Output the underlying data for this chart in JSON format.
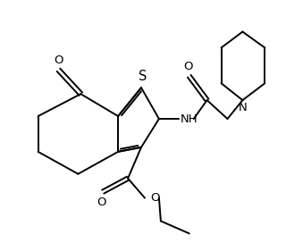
{
  "bg_color": "#ffffff",
  "line_color": "#000000",
  "line_width": 1.4,
  "font_size": 9.5,
  "xlim": [
    0,
    10
  ],
  "ylim": [
    0,
    8.5
  ]
}
